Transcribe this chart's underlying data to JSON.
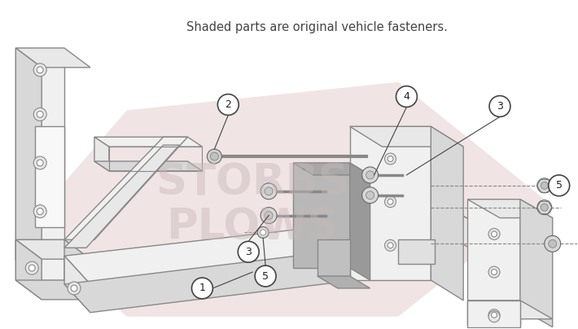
{
  "title": "Shaded parts are original vehicle fasteners.",
  "title_fontsize": 10.5,
  "title_color": "#444444",
  "background_color": "#ffffff",
  "watermark_line1": "STORBS",
  "watermark_line2": "PLOWS",
  "watermark_color": "#c8b8b8",
  "watermark_alpha": 0.45,
  "shaded_fill": "#dbb8b8",
  "shaded_alpha": 0.38,
  "line_color": "#888888",
  "line_width": 1.0,
  "part_fill": "#f0f0f0",
  "part_edge": "#888888"
}
